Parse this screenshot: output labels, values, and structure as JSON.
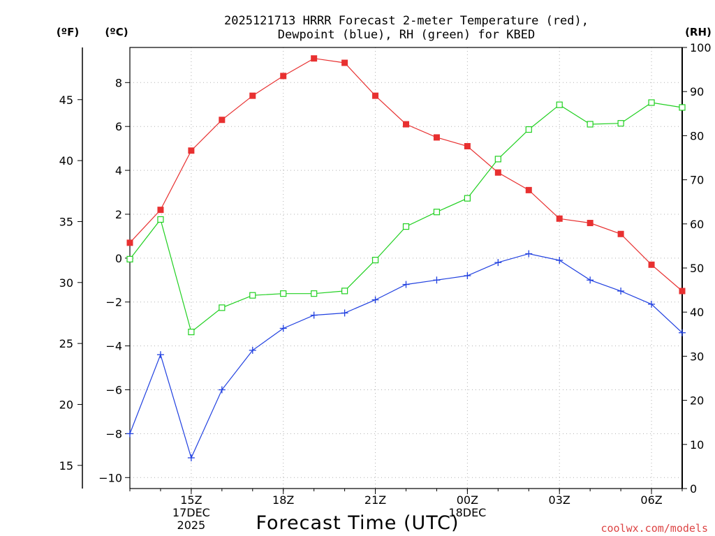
{
  "chart_data": {
    "type": "line",
    "title_lines": [
      "2025121713 HRRR Forecast 2-meter Temperature (red),",
      "Dewpoint (blue), RH (green) for KBED"
    ],
    "xlabel": "Forecast Time (UTC)",
    "left_axis_f_label": "(ºF)",
    "left_axis_c_label": "(ºC)",
    "right_axis_label": "(RH)",
    "credit": "coolwx.com/models",
    "hours": [
      13,
      14,
      15,
      16,
      17,
      18,
      19,
      20,
      21,
      22,
      23,
      24,
      25,
      26,
      27,
      28,
      29,
      30,
      31
    ],
    "x_ticks": [
      {
        "hour": 15,
        "lines": [
          "15Z",
          "17DEC",
          "2025"
        ]
      },
      {
        "hour": 18,
        "lines": [
          "18Z"
        ]
      },
      {
        "hour": 21,
        "lines": [
          "21Z"
        ]
      },
      {
        "hour": 24,
        "lines": [
          "00Z",
          "18DEC"
        ]
      },
      {
        "hour": 27,
        "lines": [
          "03Z"
        ]
      },
      {
        "hour": 30,
        "lines": [
          "06Z"
        ]
      }
    ],
    "celsius_range": [
      -10.5,
      9.6
    ],
    "celsius_ticks": [
      "-10",
      "-8",
      "-6",
      "-4",
      "-2",
      "0",
      "2",
      "4",
      "6",
      "8"
    ],
    "fahrenheit_ticks": [
      "15",
      "20",
      "25",
      "30",
      "35",
      "40",
      "45"
    ],
    "rh_range": [
      0,
      100
    ],
    "rh_ticks": [
      "0",
      "10",
      "20",
      "30",
      "40",
      "50",
      "60",
      "70",
      "80",
      "90",
      "100"
    ],
    "series": [
      {
        "name": "Temperature",
        "unit": "C",
        "axis": "celsius",
        "color": "#e83030",
        "marker": "filled-square",
        "values": [
          0.7,
          2.2,
          4.9,
          6.3,
          7.4,
          8.3,
          9.1,
          8.9,
          7.4,
          6.1,
          5.5,
          5.1,
          3.9,
          3.1,
          1.8,
          1.6,
          1.1,
          -0.3,
          -1.5
        ]
      },
      {
        "name": "Dewpoint",
        "unit": "C",
        "axis": "celsius",
        "color": "#2040e0",
        "marker": "plus",
        "values": [
          -8.0,
          -4.4,
          -9.1,
          -6.0,
          -4.2,
          -3.2,
          -2.6,
          -2.5,
          -1.9,
          -1.2,
          -1.0,
          -0.8,
          -0.2,
          0.2,
          -0.1,
          -1.0,
          -1.5,
          -2.1,
          -3.4
        ]
      },
      {
        "name": "RH",
        "unit": "%",
        "axis": "rh",
        "color": "#20d020",
        "marker": "open-square",
        "values": [
          52,
          61,
          35.5,
          41,
          43.8,
          44.2,
          44.2,
          44.8,
          51.8,
          59.4,
          62.7,
          65.8,
          74.7,
          81.4,
          87.0,
          82.6,
          82.8,
          87.5,
          86.4
        ]
      }
    ]
  }
}
